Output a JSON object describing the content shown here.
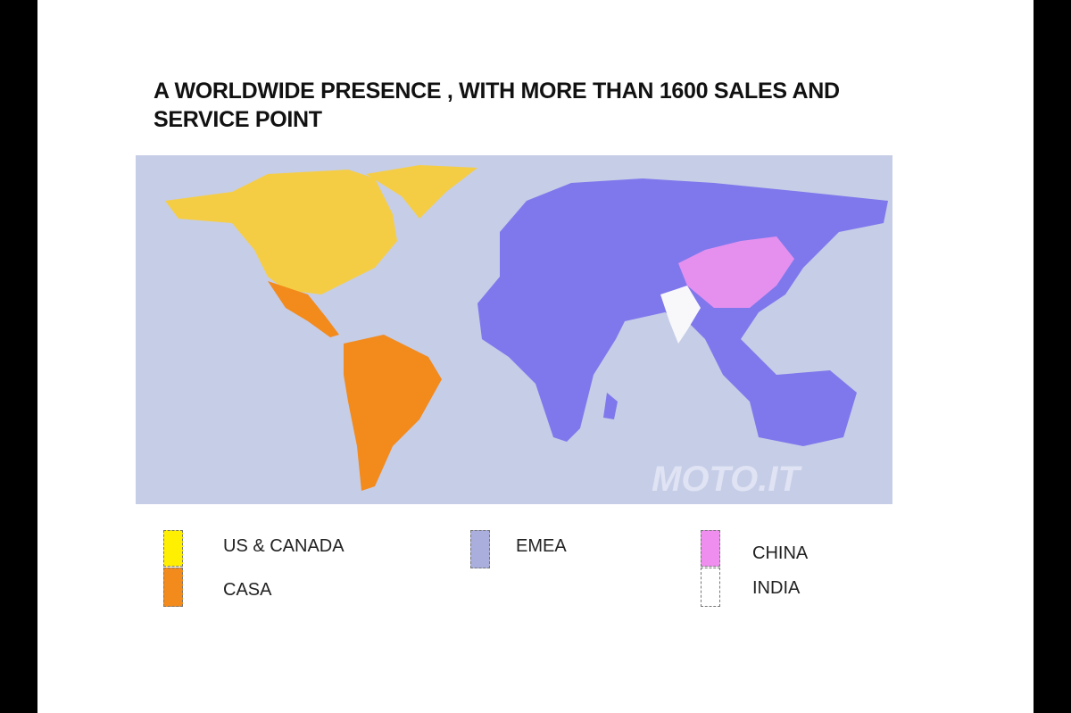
{
  "title_lines": [
    "A WORLDWIDE PRESENCE , WITH MORE THAN 1600 SALES AND",
    "SERVICE POINT"
  ],
  "watermark": "MOTO.IT",
  "legend": [
    {
      "label": "US & CANADA"
    },
    {
      "label": "CASA"
    },
    {
      "label": "EMEA"
    },
    {
      "label": "CHINA"
    },
    {
      "label": "INDIA"
    }
  ]
}
